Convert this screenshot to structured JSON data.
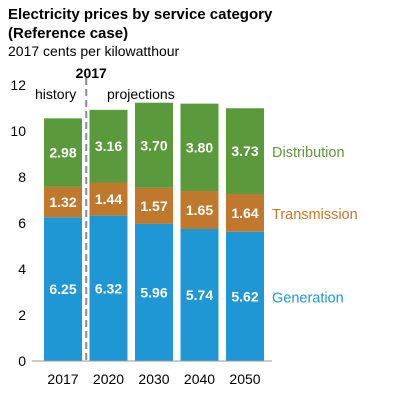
{
  "chart_data": {
    "type": "bar",
    "stacked": true,
    "title": "Electricity prices by service category (Reference case)",
    "title_lines": [
      "Electricity prices by service category",
      "(Reference case)"
    ],
    "subtitle": "2017 cents per kilowatthour",
    "xlabel": "",
    "ylabel": "",
    "categories": [
      "2017",
      "2020",
      "2030",
      "2040",
      "2050"
    ],
    "ylim": [
      0,
      12
    ],
    "yticks": [
      0,
      2,
      4,
      6,
      8,
      10,
      12
    ],
    "grid": false,
    "legend_placement": "right of bars",
    "series": [
      {
        "name": "Generation",
        "color": "#1f97d4",
        "values": [
          6.25,
          6.32,
          5.96,
          5.74,
          5.62
        ]
      },
      {
        "name": "Transmission",
        "color": "#c0782d",
        "values": [
          1.32,
          1.44,
          1.57,
          1.65,
          1.64
        ]
      },
      {
        "name": "Distribution",
        "color": "#5a9a3c",
        "values": [
          2.98,
          3.16,
          3.7,
          3.8,
          3.73
        ]
      }
    ],
    "annotations": {
      "divider_label": "2017",
      "history_label": "history",
      "projections_label": "projections"
    }
  }
}
